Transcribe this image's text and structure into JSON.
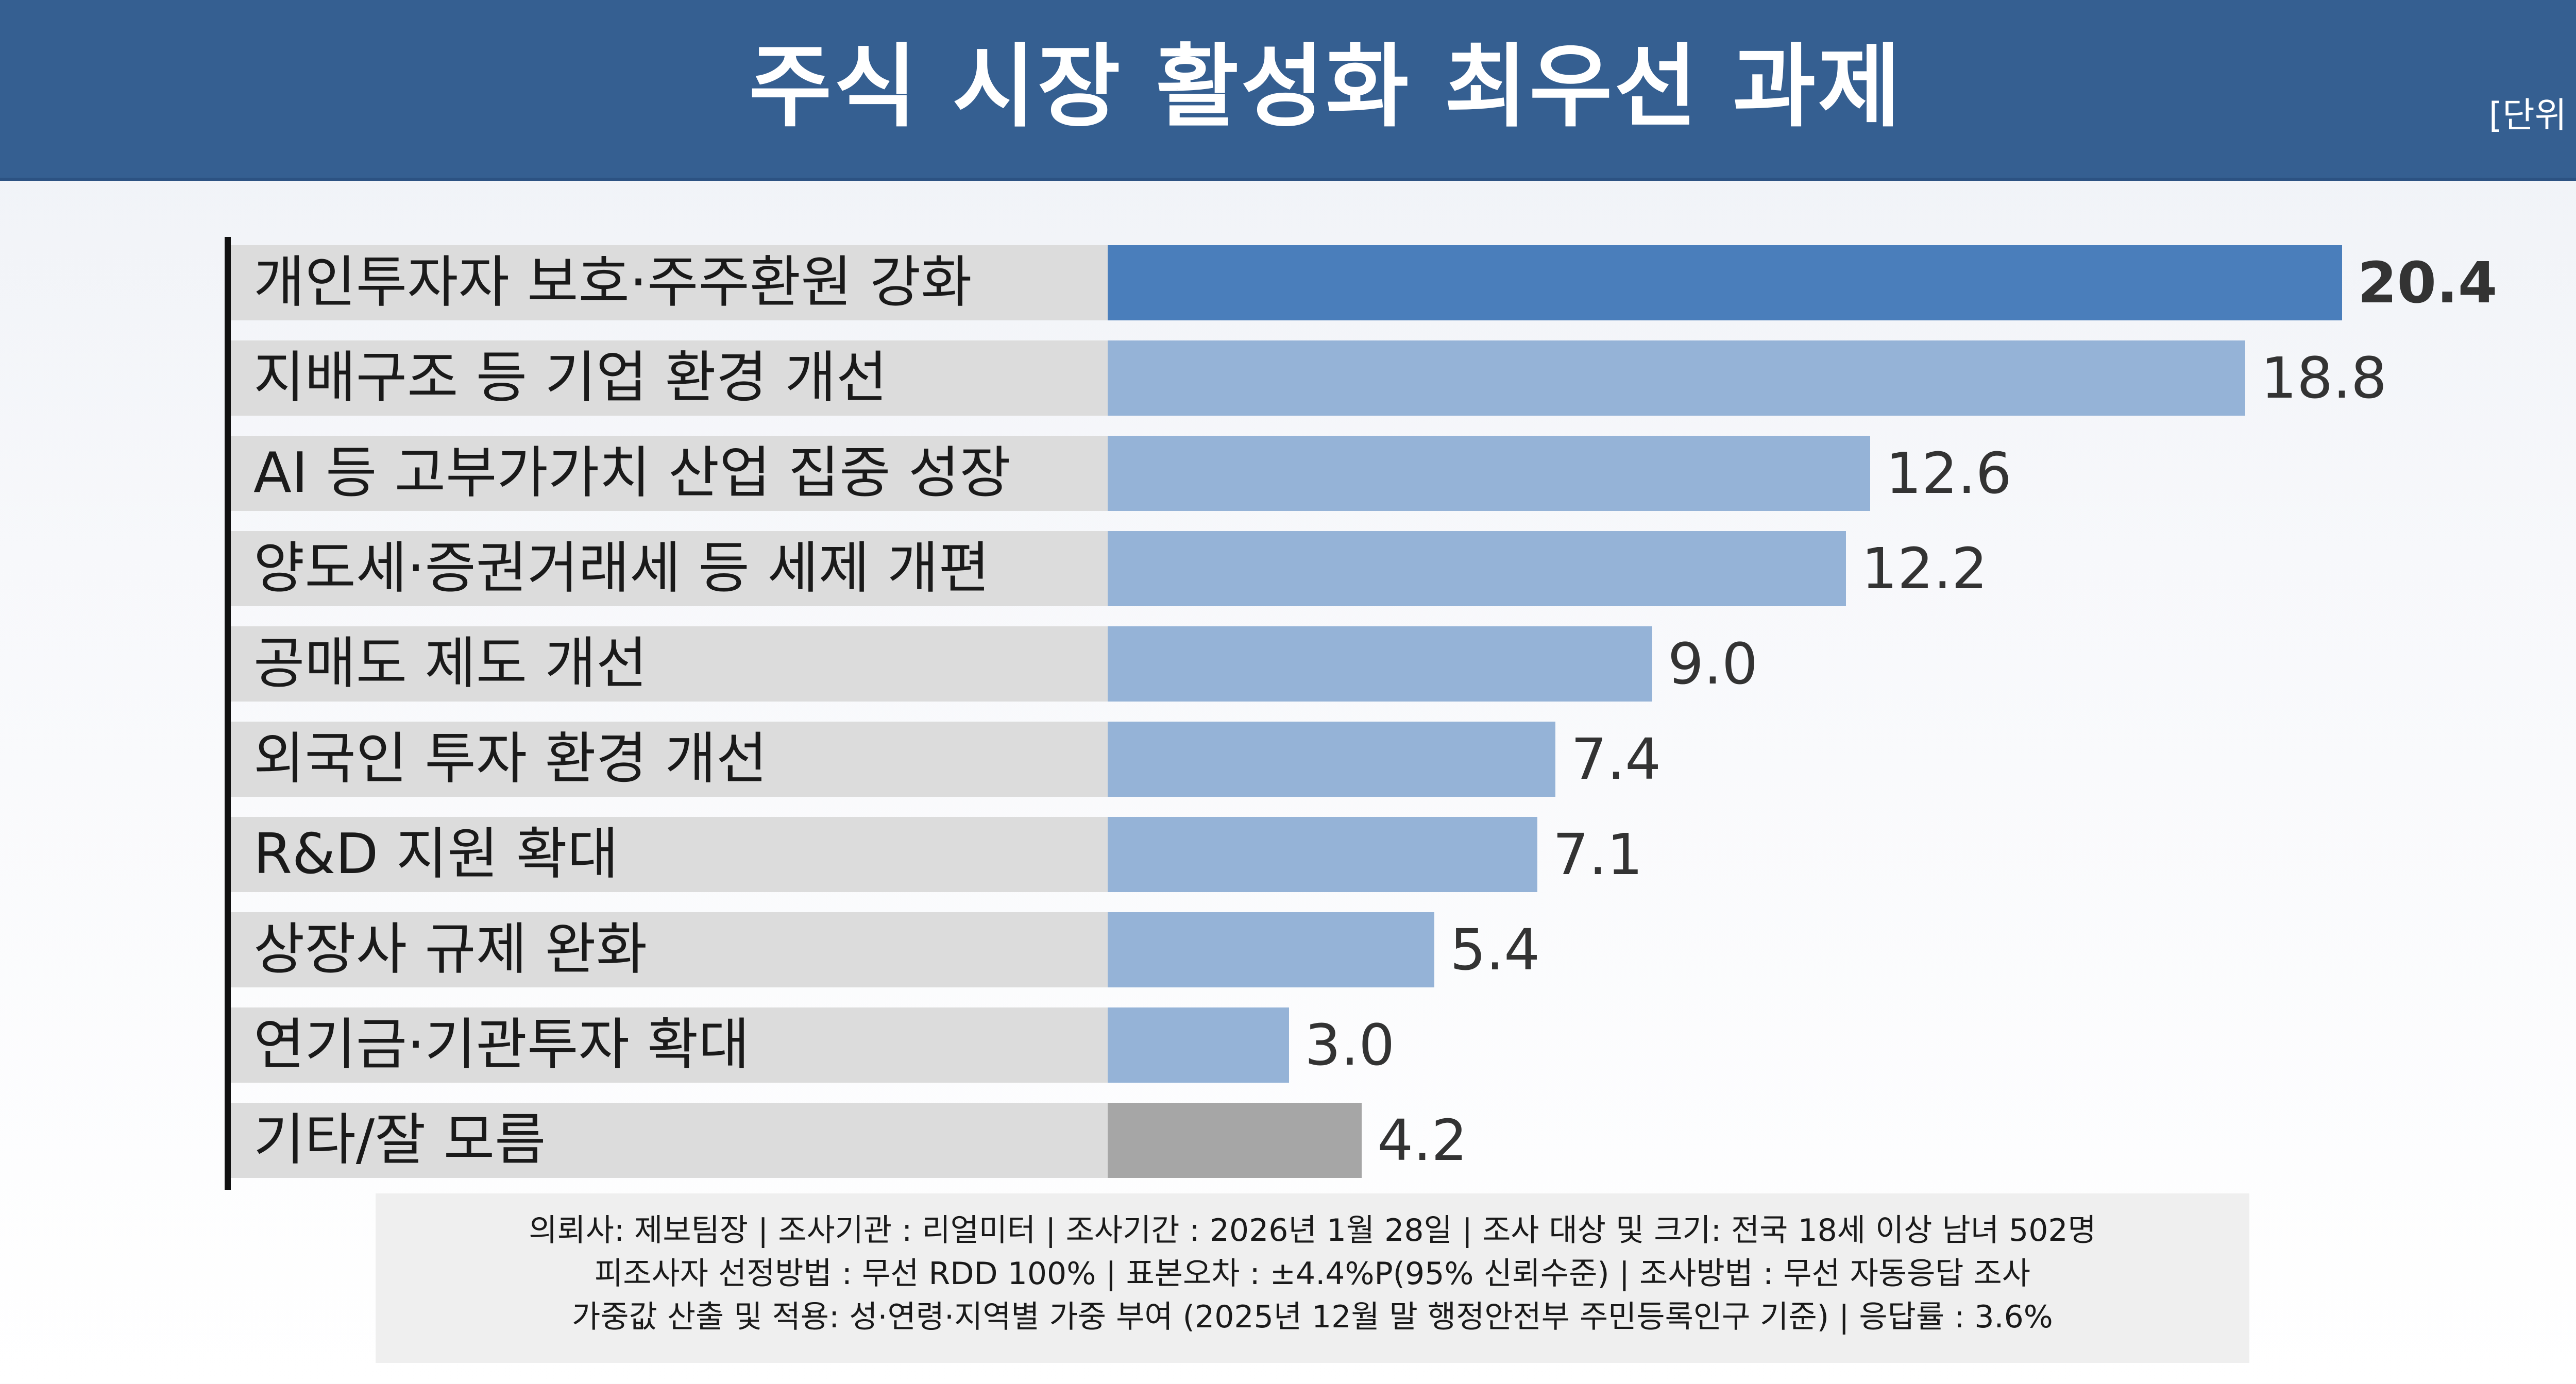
{
  "header": {
    "title": "주식 시장 활성화 최우선 과제",
    "unit": "[단위 %]"
  },
  "colors": {
    "header": "#355f91",
    "highlight": "#4a7ebb",
    "bar": "#95b3d7",
    "other": "#a6a6a6",
    "band": "#dcdcdc"
  },
  "chart_data": {
    "type": "bar",
    "orientation": "horizontal",
    "title": "주식 시장 활성화 최우선 과제",
    "unit": "[단위 %]",
    "categories": [
      "개인투자자 보호·주주환원 강화",
      "지배구조 등 기업 환경 개선",
      "AI 등 고부가가치 산업 집중 성장",
      "양도세·증권거래세 등 세제 개편",
      "공매도 제도 개선",
      "외국인 투자 환경 개선",
      "R&D 지원 확대",
      "상장사 규제 완화",
      "연기금·기관투자 확대",
      "기타/잘 모름"
    ],
    "values": [
      20.4,
      18.8,
      12.6,
      12.2,
      9.0,
      7.4,
      7.1,
      5.4,
      3.0,
      4.2
    ],
    "labels": [
      "20.4",
      "18.8",
      "12.6",
      "12.2",
      "9.0",
      "7.4",
      "7.1",
      "5.4",
      "3.0",
      "4.2"
    ],
    "xlim": [
      0,
      20.4
    ],
    "grid": false,
    "legend": "none"
  },
  "footer": {
    "lines": [
      "의뢰사: 제보팀장 | 조사기관 : 리얼미터  |  조사기간 : 2026년 1월 28일 | 조사 대상 및 크기: 전국 18세 이상 남녀 502명",
      "피조사자 선정방법 : 무선 RDD 100% | 표본오차 : ±4.4%P(95% 신뢰수준) | 조사방법 : 무선 자동응답 조사",
      "가중값 산출 및 적용: 성·연령·지역별 가중 부여 (2025년 12월 말 행정안전부 주민등록인구 기준) | 응답률 : 3.6%"
    ]
  }
}
